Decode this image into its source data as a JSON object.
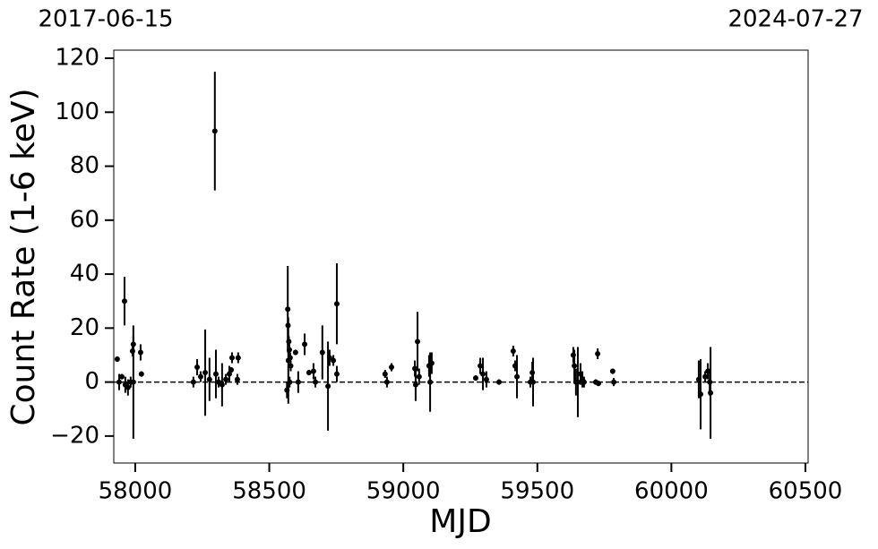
{
  "chart_data": {
    "type": "errorbar-scatter",
    "top_labels": [
      "2017-06-15",
      "2024-07-27"
    ],
    "xlabel": "MJD",
    "ylabel": "Count Rate (1-6 keV)",
    "color": "#000000",
    "hline": 0,
    "xlim": [
      57920,
      60510
    ],
    "ylim": [
      -30,
      123
    ],
    "xticks": [
      58000,
      58500,
      59000,
      59500,
      60000,
      60500
    ],
    "yticks": [
      {
        "value": -20,
        "label": "−20"
      },
      0,
      20,
      40,
      60,
      80,
      100,
      120
    ],
    "x": [
      57933,
      57940,
      57950,
      57960,
      57963,
      57973,
      57983,
      57990,
      57993,
      57993,
      58020,
      58023,
      58217,
      58231,
      58244,
      58261,
      58277,
      58297,
      58301,
      58311,
      58324,
      58338,
      58351,
      58358,
      58361,
      58384,
      58381,
      58569,
      58571,
      58570,
      58573,
      58575,
      58578,
      58580,
      58576,
      58566,
      58598,
      58608,
      58632,
      58648,
      58665,
      58672,
      58698,
      58719,
      58725,
      58739,
      58752,
      58752,
      58932,
      58939,
      58956,
      59043,
      59046,
      59053,
      59059,
      59096,
      59100,
      59106,
      59270,
      59287,
      59297,
      59310,
      59357,
      59410,
      59417,
      59424,
      59474,
      59481,
      59484,
      59634,
      59638,
      59644,
      59651,
      59661,
      59668,
      59674,
      59718,
      59725,
      59728,
      59781,
      59785,
      60102,
      60109,
      60126,
      60136,
      60146,
      60143
    ],
    "values": [
      8.5,
      0,
      2,
      30,
      -1,
      -2,
      0,
      11.5,
      14,
      0,
      11,
      3,
      0,
      5.5,
      2,
      3.5,
      1,
      93,
      3,
      0,
      -1,
      1,
      3,
      4.5,
      9,
      9,
      1,
      27,
      8,
      21,
      15,
      12,
      9,
      6,
      0,
      -3,
      11,
      0,
      14,
      3.5,
      4,
      0,
      11,
      -1.5,
      9,
      8,
      29,
      3,
      3,
      0,
      5.5,
      5,
      -1,
      15,
      2,
      6,
      0,
      7,
      1.5,
      6,
      3,
      1,
      0,
      11.5,
      6,
      2,
      0,
      3.5,
      0,
      10,
      6,
      0,
      0,
      3,
      1,
      0,
      0,
      10.5,
      -0.5,
      4,
      0,
      1,
      -4.5,
      2,
      4,
      -4,
      0
    ],
    "errors": [
      1,
      3,
      1,
      9,
      3,
      3,
      2,
      2,
      3,
      21,
      3,
      1,
      2,
      3,
      2,
      16,
      8,
      22,
      9,
      2,
      8,
      2,
      3,
      1,
      2,
      2,
      2,
      16,
      16,
      2,
      2,
      2,
      2,
      2,
      2,
      3,
      1,
      4,
      4,
      1,
      3,
      2,
      10,
      16.5,
      3,
      2,
      15,
      3,
      1.5,
      2,
      1.5,
      3,
      6,
      11,
      3,
      4,
      11,
      4,
      1,
      3,
      6,
      3,
      1,
      2,
      2,
      8,
      2,
      4,
      9,
      3,
      6,
      5,
      13,
      4,
      3,
      2,
      1,
      2,
      1,
      1,
      1.5,
      7,
      13,
      2,
      3,
      17,
      5
    ]
  }
}
